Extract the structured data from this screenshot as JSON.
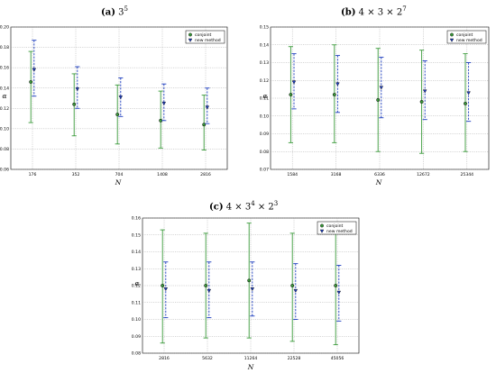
{
  "panels": [
    {
      "id": "a",
      "title_label": "(a)",
      "title_base": "3",
      "title_sup": "5",
      "title_rest": [],
      "chart_data": {
        "type": "scatter",
        "categories": [
          "176",
          "352",
          "704",
          "1408",
          "2816"
        ],
        "xlabel": "N",
        "ylabel": "α",
        "ylim": [
          0.06,
          0.2
        ],
        "yticks": [
          "0.06",
          "0.08",
          "0.10",
          "0.12",
          "0.14",
          "0.16",
          "0.18",
          "0.20"
        ],
        "grid": true,
        "legend_position": "top-right",
        "series": [
          {
            "name": "conjoint",
            "color": "#3a9a3a",
            "marker": "circle",
            "values": [
              0.146,
              0.124,
              0.114,
              0.108,
              0.104
            ],
            "lower": [
              0.106,
              0.093,
              0.085,
              0.081,
              0.079
            ],
            "upper": [
              0.176,
              0.154,
              0.143,
              0.137,
              0.133
            ]
          },
          {
            "name": "new method",
            "color": "#1f3fbf",
            "marker": "triangle",
            "values": [
              0.158,
              0.139,
              0.131,
              0.125,
              0.121
            ],
            "lower": [
              0.132,
              0.12,
              0.112,
              0.108,
              0.105
            ],
            "upper": [
              0.187,
              0.161,
              0.15,
              0.144,
              0.14
            ]
          }
        ]
      }
    },
    {
      "id": "b",
      "title_label": "(b)",
      "title_base": "4 × 3 × 2",
      "title_sup": "7",
      "title_rest": [],
      "chart_data": {
        "type": "scatter",
        "categories": [
          "1584",
          "3168",
          "6336",
          "12672",
          "25344"
        ],
        "xlabel": "N",
        "ylabel": "α",
        "ylim": [
          0.07,
          0.15
        ],
        "yticks": [
          "0.07",
          "0.08",
          "0.09",
          "0.10",
          "0.11",
          "0.12",
          "0.13",
          "0.14",
          "0.15"
        ],
        "grid": true,
        "legend_position": "top-right",
        "series": [
          {
            "name": "conjoint",
            "color": "#3a9a3a",
            "marker": "circle",
            "values": [
              0.112,
              0.112,
              0.109,
              0.108,
              0.107
            ],
            "lower": [
              0.085,
              0.085,
              0.08,
              0.079,
              0.08
            ],
            "upper": [
              0.139,
              0.14,
              0.138,
              0.137,
              0.135
            ]
          },
          {
            "name": "new method",
            "color": "#1f3fbf",
            "marker": "triangle",
            "values": [
              0.119,
              0.118,
              0.116,
              0.114,
              0.113
            ],
            "lower": [
              0.104,
              0.102,
              0.099,
              0.098,
              0.097
            ],
            "upper": [
              0.135,
              0.134,
              0.133,
              0.131,
              0.13
            ]
          }
        ]
      }
    },
    {
      "id": "c",
      "title_label": "(c)",
      "title_base": "4 × 3",
      "title_sup": "4",
      "title_rest": [
        "× 2",
        "3"
      ],
      "chart_data": {
        "type": "scatter",
        "categories": [
          "2816",
          "5632",
          "11264",
          "22528",
          "45056"
        ],
        "xlabel": "N",
        "ylabel": "α",
        "ylim": [
          0.08,
          0.16
        ],
        "yticks": [
          "0.08",
          "0.09",
          "0.10",
          "0.11",
          "0.12",
          "0.13",
          "0.14",
          "0.15",
          "0.16"
        ],
        "grid": true,
        "legend_position": "top-right",
        "series": [
          {
            "name": "conjoint",
            "color": "#3a9a3a",
            "marker": "circle",
            "values": [
              0.12,
              0.12,
              0.123,
              0.12,
              0.12
            ],
            "lower": [
              0.086,
              0.089,
              0.089,
              0.087,
              0.085
            ],
            "upper": [
              0.153,
              0.151,
              0.157,
              0.151,
              0.153
            ]
          },
          {
            "name": "new method",
            "color": "#1f3fbf",
            "marker": "triangle",
            "values": [
              0.118,
              0.117,
              0.118,
              0.117,
              0.116
            ],
            "lower": [
              0.101,
              0.101,
              0.102,
              0.1,
              0.099
            ],
            "upper": [
              0.134,
              0.134,
              0.134,
              0.133,
              0.132
            ]
          }
        ]
      }
    }
  ]
}
